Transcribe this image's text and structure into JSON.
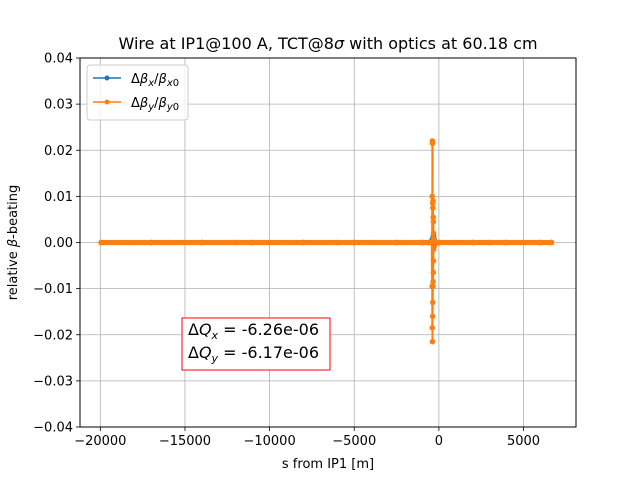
{
  "chart_data": {
    "type": "line",
    "title": "Wire at IP1@100 A, TCT@8σ with optics at 60.18 cm",
    "xlabel": "s from IP1 [m]",
    "ylabel": "relative β-beating",
    "xlim": [
      -21200,
      8100
    ],
    "ylim": [
      -0.04,
      0.04
    ],
    "xticks": [
      -20000,
      -15000,
      -10000,
      -5000,
      0,
      5000
    ],
    "xtick_labels": [
      "−20000",
      "−15000",
      "−10000",
      "−5000",
      "0",
      "5000"
    ],
    "yticks": [
      -0.04,
      -0.03,
      -0.02,
      -0.01,
      0.0,
      0.01,
      0.02,
      0.03,
      0.04
    ],
    "ytick_labels": [
      "−0.04",
      "−0.03",
      "−0.02",
      "−0.01",
      "0.00",
      "0.01",
      "0.02",
      "0.03",
      "0.04"
    ],
    "grid": true,
    "legend_position": "top-left",
    "series": [
      {
        "name": "Δβx/βx0",
        "color": "#1f77b4",
        "x": [
          -19950,
          -17000,
          -14000,
          -11000,
          -8000,
          -5000,
          -2500,
          -1000,
          -600,
          -400,
          -350,
          -320,
          -300,
          -280,
          -250,
          -200,
          0,
          2000,
          4000,
          6000,
          6650
        ],
        "y": [
          0,
          0,
          0,
          0,
          0,
          0,
          0,
          0,
          0,
          0.0005,
          0.001,
          0.0015,
          -0.001,
          0.0008,
          0,
          0,
          0,
          0,
          0,
          0,
          0
        ]
      },
      {
        "name": "Δβy/βy0",
        "color": "#ff7f0e",
        "x": [
          -19950,
          -18000,
          -16000,
          -14000,
          -12000,
          -10000,
          -8000,
          -6000,
          -4000,
          -2000,
          -1000,
          -500,
          -420,
          -400,
          -395,
          -390,
          -385,
          -380,
          -375,
          -370,
          -365,
          -360,
          -355,
          -350,
          -345,
          -340,
          -335,
          -330,
          -325,
          -320,
          -315,
          -310,
          -300,
          -250,
          -150,
          0,
          1000,
          2000,
          3000,
          4000,
          5000,
          6000,
          6650
        ],
        "y": [
          0,
          0,
          0,
          0,
          0,
          0,
          0,
          0,
          0,
          0,
          0,
          0,
          0,
          -0.0095,
          0.01,
          -0.0185,
          0.022,
          -0.0215,
          0.0215,
          -0.016,
          0.0085,
          -0.013,
          0.0075,
          -0.0095,
          0.009,
          -0.0085,
          0.0055,
          -0.0065,
          0.0045,
          -0.004,
          0.002,
          -0.0015,
          0.0008,
          -0.0005,
          0,
          0,
          0,
          0,
          0,
          0,
          0,
          0,
          0
        ]
      }
    ],
    "annotation": {
      "dqx": "ΔQx = -6.26e-06",
      "dqy": "ΔQy = -6.17e-06"
    }
  }
}
